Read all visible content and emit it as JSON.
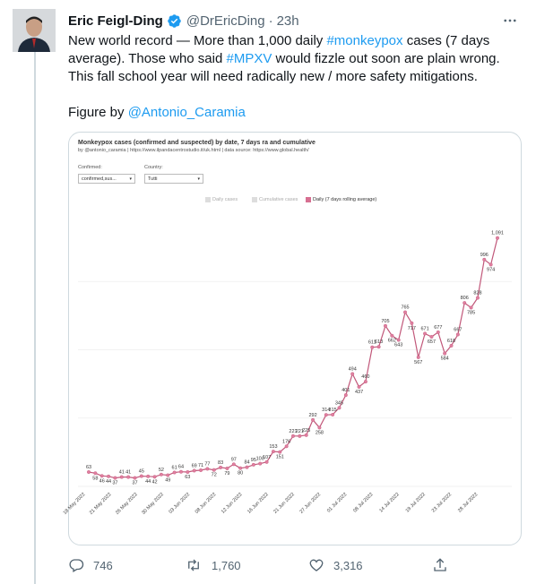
{
  "tweet": {
    "author_name": "Eric Feigl-Ding",
    "handle": "@DrEricDing",
    "separator": "·",
    "time": "23h",
    "text_1": "New world record — More than 1,000 daily ",
    "hashtag_1": "#monkeypox",
    "text_2": " cases (7 days average). Those who said ",
    "hashtag_2": "#MPXV",
    "text_3": " would fizzle out soon are plain wrong. This fall school year will need radically new / more safety mitigations.",
    "figure_prefix": "Figure by ",
    "figure_mention": "@Antonio_Caramia"
  },
  "media": {
    "controls": {
      "confirmed_label": "Confirmed:",
      "confirmed_value": "confirmed,sus...",
      "country_label": "Country:",
      "country_value": "Tutti"
    },
    "legend": {
      "daily_cases": "Daily cases",
      "cumulative_cases": "Cumulative cases",
      "rolling_average": "Daily (7 days rolling average)"
    }
  },
  "chart_data": {
    "type": "line",
    "title": "Monkeypox cases (confirmed and suspected) by date, 7 days ra and cumulative",
    "subtitle": "by @antonio_caramia | https://www.ilpandacentrostudio.it/uk.html | data source: https://www.global.health/",
    "x_tick_labels": [
      "18 May 2022",
      "21 May 2022",
      "26 May 2022",
      "30 May 2022",
      "03 Jun 2022",
      "08 Jun 2022",
      "12 Jun 2022",
      "16 Jun 2022",
      "21 Jun 2022",
      "27 Jun 2022",
      "01 Jul 2022",
      "08 Jul 2022",
      "14 Jul 2022",
      "19 Jul 2022",
      "23 Jul 2022",
      "28 Jul 2022"
    ],
    "ylim": [
      0,
      1200
    ],
    "series": [
      {
        "color": "#c1587a",
        "values": [
          63,
          58,
          46,
          44,
          37,
          41,
          41,
          37,
          45,
          44,
          42,
          52,
          49,
          61,
          64,
          63,
          69,
          71,
          77,
          72,
          83,
          79,
          97,
          80,
          84,
          95,
          100,
          107,
          153,
          151,
          176,
          221,
          221,
          225,
          292,
          258,
          314,
          315,
          345,
          401,
          494,
          437,
          460,
          611,
          613,
          705,
          662,
          643,
          765,
          717,
          567,
          671,
          657,
          677,
          584,
          618,
          667,
          806,
          785,
          828,
          996,
          974,
          1091
        ],
        "labels": [
          63,
          58,
          46,
          44,
          37,
          41,
          41,
          37,
          45,
          44,
          42,
          52,
          49,
          61,
          64,
          63,
          69,
          71,
          77,
          72,
          83,
          79,
          97,
          80,
          84,
          95,
          100,
          107,
          153,
          151,
          176,
          221,
          221,
          225,
          292,
          258,
          314,
          315,
          345,
          401,
          494,
          437,
          460,
          611,
          613,
          705,
          662,
          643,
          765,
          717,
          567,
          671,
          657,
          677,
          584,
          618,
          667,
          806,
          785,
          828,
          996,
          974,
          "1,091"
        ]
      }
    ]
  },
  "actions": {
    "reply_count": "746",
    "retweet_count": "1,760",
    "like_count": "3,316"
  },
  "colors": {
    "link": "#1d9bf0",
    "verified": "#1d9bf0",
    "series": "#c1587a",
    "secondary_text": "#536471"
  }
}
